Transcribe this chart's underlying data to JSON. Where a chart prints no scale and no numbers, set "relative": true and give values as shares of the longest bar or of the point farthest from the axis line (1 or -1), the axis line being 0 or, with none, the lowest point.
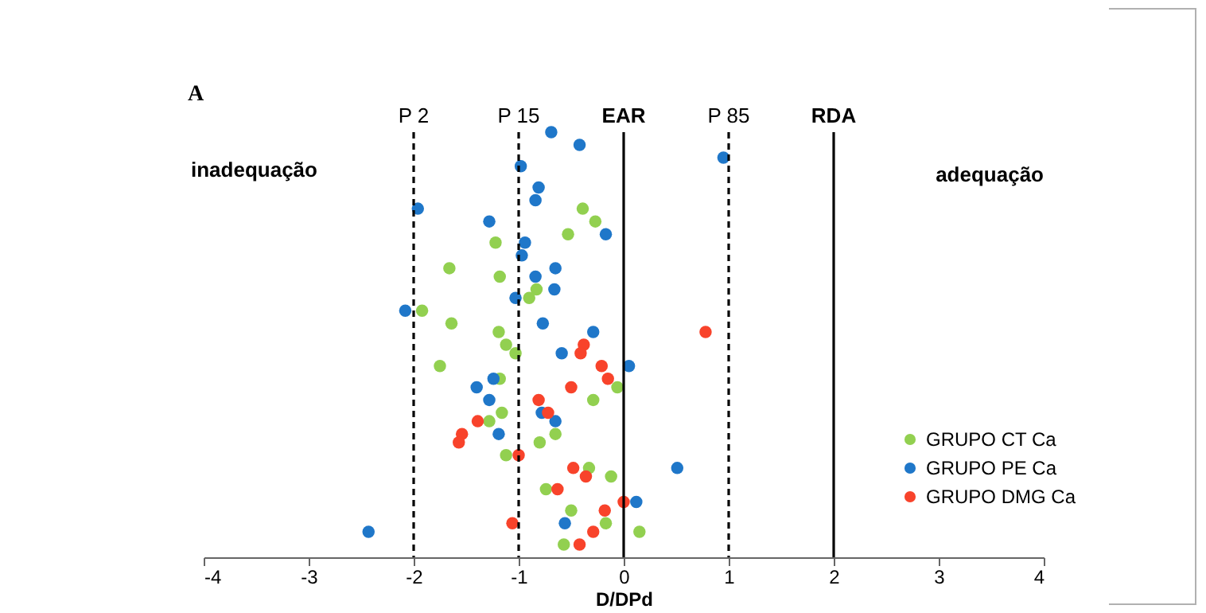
{
  "chart_data": {
    "type": "scatter",
    "xlabel": "D/DPd",
    "xlim": [
      -4,
      4
    ],
    "xticks": [
      -4,
      -3,
      -2,
      -1,
      0,
      1,
      2,
      3,
      4
    ],
    "relative": true,
    "marker": "circle",
    "legend": "bottom right",
    "annotations": [
      "A",
      "inadequação",
      "adequação"
    ],
    "ref_lines": [
      {
        "axis": "x",
        "value": -2,
        "label": "P 2",
        "line_style": "dashed"
      },
      {
        "axis": "x",
        "value": -1,
        "label": "P 15",
        "line_style": "dashed"
      },
      {
        "axis": "x",
        "value": 0,
        "label": "EAR",
        "line_style": "solid"
      },
      {
        "axis": "x",
        "value": 1,
        "label": "P 85",
        "line_style": "dashed"
      },
      {
        "axis": "x",
        "value": 2,
        "label": "RDA",
        "line_style": "solid"
      }
    ],
    "series": [
      {
        "name": "GRUPO CT Ca",
        "color": "#92d050",
        "x": [
          -0.39,
          -0.27,
          -0.53,
          -1.22,
          -1.66,
          -1.18,
          -0.83,
          -0.9,
          -1.92,
          -1.64,
          -1.19,
          -1.12,
          -1.03,
          -1.75,
          -1.18,
          -0.06,
          -0.29,
          -1.16,
          -1.28,
          -0.65,
          -0.8,
          -1.12,
          -0.33,
          -0.12,
          -0.74,
          -0.5,
          -0.17,
          0.15,
          -0.57
        ],
        "values": [
          0.82,
          0.79,
          0.76,
          0.74,
          0.68,
          0.66,
          0.63,
          0.61,
          0.58,
          0.55,
          0.53,
          0.5,
          0.48,
          0.45,
          0.42,
          0.4,
          0.37,
          0.34,
          0.32,
          0.29,
          0.27,
          0.24,
          0.21,
          0.19,
          0.16,
          0.11,
          0.08,
          0.06,
          0.03
        ]
      },
      {
        "name": "GRUPO PE Ca",
        "color": "#1f77c9",
        "x": [
          -0.69,
          -0.42,
          0.95,
          -0.98,
          -0.81,
          -0.84,
          -1.96,
          -1.28,
          -0.17,
          -0.94,
          -0.97,
          -0.65,
          -0.84,
          -0.66,
          -1.03,
          -2.08,
          -0.77,
          -0.29,
          -0.59,
          0.05,
          -1.24,
          -1.4,
          -1.28,
          -0.78,
          -0.65,
          -1.19,
          0.51,
          0.12,
          -0.56,
          -2.43
        ],
        "values": [
          1,
          0.97,
          0.94,
          0.92,
          0.87,
          0.84,
          0.82,
          0.79,
          0.76,
          0.74,
          0.71,
          0.68,
          0.66,
          0.63,
          0.61,
          0.58,
          0.55,
          0.53,
          0.48,
          0.45,
          0.42,
          0.4,
          0.37,
          0.34,
          0.32,
          0.29,
          0.21,
          0.13,
          0.08,
          0.06
        ]
      },
      {
        "name": "GRUPO DMG Ca",
        "color": "#f8432b",
        "x": [
          0.78,
          -0.38,
          -0.41,
          -0.21,
          -0.15,
          -0.5,
          -0.81,
          -0.72,
          -1.39,
          -1.54,
          -1.57,
          -1.0,
          -0.48,
          -0.36,
          -0.63,
          0,
          -0.18,
          -1.06,
          -0.29,
          -0.42
        ],
        "values": [
          0.53,
          0.5,
          0.48,
          0.45,
          0.42,
          0.4,
          0.37,
          0.34,
          0.32,
          0.29,
          0.27,
          0.24,
          0.21,
          0.19,
          0.16,
          0.13,
          0.11,
          0.08,
          0.06,
          0.03
        ]
      }
    ]
  }
}
